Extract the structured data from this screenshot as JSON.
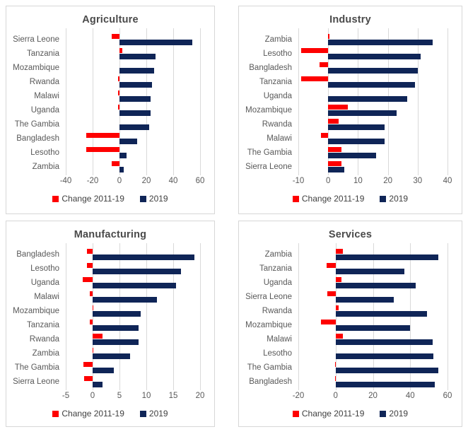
{
  "colors": {
    "change_series": "#fe0000",
    "y2019_series": "#0f2557",
    "grid_line": "#d9d9d9",
    "axis_text": "#595959",
    "title_text": "#4a4a4a",
    "panel_border": "#d7d7d7",
    "background": "#ffffff"
  },
  "legend": {
    "change_label": "Change 2011-19",
    "y2019_label": "2019"
  },
  "chart_data": [
    {
      "type": "bar",
      "orientation": "horizontal",
      "title": "Agriculture",
      "xlim": [
        -40,
        60
      ],
      "ticks": [
        -40,
        -20,
        0,
        20,
        40,
        60
      ],
      "grid": true,
      "legend_position": "bottom",
      "categories": [
        "Sierra Leone",
        "Tanzania",
        "Mozambique",
        "Rwanda",
        "Malawi",
        "Uganda",
        "The Gambia",
        "Bangladesh",
        "Lesotho",
        "Zambia"
      ],
      "series": [
        {
          "name": "Change 2011-19",
          "values": [
            -6,
            2,
            0,
            -1,
            -1,
            -1,
            0,
            -25,
            -25,
            -6
          ]
        },
        {
          "name": "2019",
          "values": [
            54,
            27,
            26,
            24,
            23,
            23,
            22,
            13,
            5,
            3
          ]
        }
      ]
    },
    {
      "type": "bar",
      "orientation": "horizontal",
      "title": "Industry",
      "xlim": [
        -10,
        40
      ],
      "ticks": [
        -10,
        0,
        10,
        20,
        30,
        40
      ],
      "grid": true,
      "legend_position": "bottom",
      "categories": [
        "Zambia",
        "Lesotho",
        "Bangladesh",
        "Tanzania",
        "Uganda",
        "Mozambique",
        "Rwanda",
        "Malawi",
        "The Gambia",
        "Sierra Leone"
      ],
      "series": [
        {
          "name": "Change 2011-19",
          "values": [
            0.5,
            -9,
            -3,
            -9,
            0,
            6.5,
            3.5,
            -2.5,
            4.5,
            4.5
          ]
        },
        {
          "name": "2019",
          "values": [
            35,
            31,
            30,
            29,
            26.5,
            23,
            19,
            19,
            16,
            5.5
          ]
        }
      ]
    },
    {
      "type": "bar",
      "orientation": "horizontal",
      "title": "Manufacturing",
      "xlim": [
        -5,
        20
      ],
      "ticks": [
        -5,
        0,
        5,
        10,
        15,
        20
      ],
      "grid": true,
      "legend_position": "bottom",
      "categories": [
        "Bangladesh",
        "Lesotho",
        "Uganda",
        "Malawi",
        "Mozambique",
        "Tanzania",
        "Rwanda",
        "Zambia",
        "The Gambia",
        "Sierra Leone"
      ],
      "series": [
        {
          "name": "Change 2011-19",
          "values": [
            -1,
            -1,
            -1.8,
            -0.5,
            0.1,
            -0.5,
            1.8,
            0.1,
            -1.7,
            -1.6
          ]
        },
        {
          "name": "2019",
          "values": [
            19,
            16.5,
            15.5,
            12,
            9,
            8.5,
            8.5,
            7,
            4,
            1.8
          ]
        }
      ]
    },
    {
      "type": "bar",
      "orientation": "horizontal",
      "title": "Services",
      "xlim": [
        -20,
        60
      ],
      "ticks": [
        -20,
        0,
        20,
        40,
        60
      ],
      "grid": true,
      "legend_position": "bottom",
      "categories": [
        "Zambia",
        "Tanzania",
        "Uganda",
        "Sierra Leone",
        "Rwanda",
        "Mozambique",
        "Malawi",
        "Lesotho",
        "The Gambia",
        "Bangladesh"
      ],
      "series": [
        {
          "name": "Change 2011-19",
          "values": [
            4,
            -5,
            3,
            -4.5,
            1.5,
            -8,
            4,
            0,
            -0.3,
            -0.3
          ]
        },
        {
          "name": "2019",
          "values": [
            55,
            37,
            43,
            31,
            49,
            40,
            52,
            52.5,
            55,
            53
          ]
        }
      ]
    }
  ]
}
